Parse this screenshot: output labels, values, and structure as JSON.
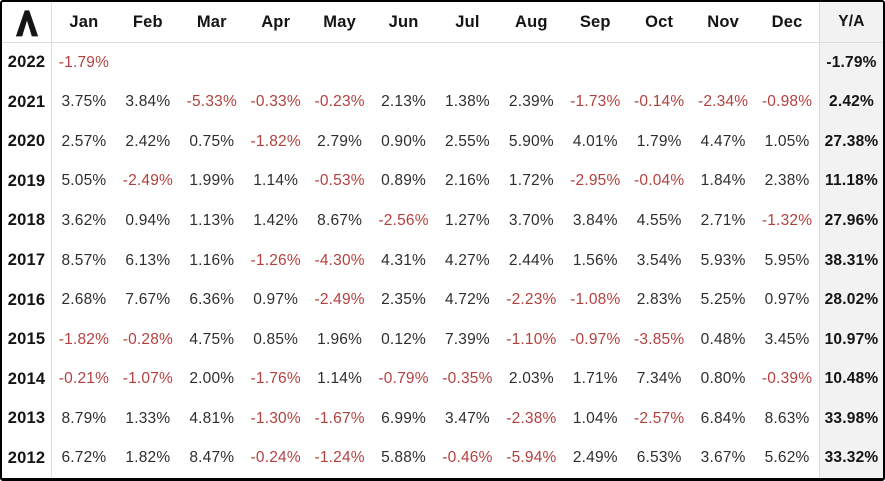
{
  "colors": {
    "negative": "#b2413e",
    "positive": "#2e2e2e",
    "strong": "#141414",
    "ya_bg": "#f2f2f2",
    "grid": "#dcdcdc",
    "frame": "#000000"
  },
  "logo": {
    "icon": "caret-logo"
  },
  "chart_data": {
    "type": "table",
    "columns": [
      "Jan",
      "Feb",
      "Mar",
      "Apr",
      "May",
      "Jun",
      "Jul",
      "Aug",
      "Sep",
      "Oct",
      "Nov",
      "Dec",
      "Y/A"
    ],
    "rows": [
      {
        "year": "2022",
        "values": [
          "-1.79%",
          "",
          "",
          "",
          "",
          "",
          "",
          "",
          "",
          "",
          "",
          ""
        ],
        "ya": "-1.79%"
      },
      {
        "year": "2021",
        "values": [
          "3.75%",
          "3.84%",
          "-5.33%",
          "-0.33%",
          "-0.23%",
          "2.13%",
          "1.38%",
          "2.39%",
          "-1.73%",
          "-0.14%",
          "-2.34%",
          "-0.98%"
        ],
        "ya": "2.42%"
      },
      {
        "year": "2020",
        "values": [
          "2.57%",
          "2.42%",
          "0.75%",
          "-1.82%",
          "2.79%",
          "0.90%",
          "2.55%",
          "5.90%",
          "4.01%",
          "1.79%",
          "4.47%",
          "1.05%"
        ],
        "ya": "27.38%"
      },
      {
        "year": "2019",
        "values": [
          "5.05%",
          "-2.49%",
          "1.99%",
          "1.14%",
          "-0.53%",
          "0.89%",
          "2.16%",
          "1.72%",
          "-2.95%",
          "-0.04%",
          "1.84%",
          "2.38%"
        ],
        "ya": "11.18%"
      },
      {
        "year": "2018",
        "values": [
          "3.62%",
          "0.94%",
          "1.13%",
          "1.42%",
          "8.67%",
          "-2.56%",
          "1.27%",
          "3.70%",
          "3.84%",
          "4.55%",
          "2.71%",
          "-1.32%"
        ],
        "ya": "27.96%"
      },
      {
        "year": "2017",
        "values": [
          "8.57%",
          "6.13%",
          "1.16%",
          "-1.26%",
          "-4.30%",
          "4.31%",
          "4.27%",
          "2.44%",
          "1.56%",
          "3.54%",
          "5.93%",
          "5.95%"
        ],
        "ya": "38.31%"
      },
      {
        "year": "2016",
        "values": [
          "2.68%",
          "7.67%",
          "6.36%",
          "0.97%",
          "-2.49%",
          "2.35%",
          "4.72%",
          "-2.23%",
          "-1.08%",
          "2.83%",
          "5.25%",
          "0.97%"
        ],
        "ya": "28.02%"
      },
      {
        "year": "2015",
        "values": [
          "-1.82%",
          "-0.28%",
          "4.75%",
          "0.85%",
          "1.96%",
          "0.12%",
          "7.39%",
          "-1.10%",
          "-0.97%",
          "-3.85%",
          "0.48%",
          "3.45%"
        ],
        "ya": "10.97%"
      },
      {
        "year": "2014",
        "values": [
          "-0.21%",
          "-1.07%",
          "2.00%",
          "-1.76%",
          "1.14%",
          "-0.79%",
          "-0.35%",
          "2.03%",
          "1.71%",
          "7.34%",
          "0.80%",
          "-0.39%"
        ],
        "ya": "10.48%"
      },
      {
        "year": "2013",
        "values": [
          "8.79%",
          "1.33%",
          "4.81%",
          "-1.30%",
          "-1.67%",
          "6.99%",
          "3.47%",
          "-2.38%",
          "1.04%",
          "-2.57%",
          "6.84%",
          "8.63%"
        ],
        "ya": "33.98%"
      },
      {
        "year": "2012",
        "values": [
          "6.72%",
          "1.82%",
          "8.47%",
          "-0.24%",
          "-1.24%",
          "5.88%",
          "-0.46%",
          "-5.94%",
          "2.49%",
          "6.53%",
          "3.67%",
          "5.62%"
        ],
        "ya": "33.32%"
      }
    ]
  }
}
